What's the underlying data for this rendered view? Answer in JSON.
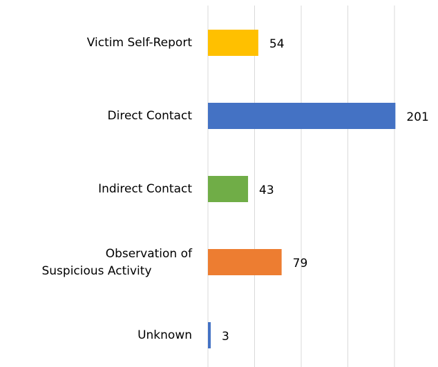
{
  "chart_data": {
    "type": "bar",
    "orientation": "horizontal",
    "categories": [
      "Victim Self-Report",
      "Direct Contact",
      "Indirect Contact",
      "Observation of Suspicious Activity",
      "Unknown"
    ],
    "values": [
      54,
      201,
      43,
      79,
      3
    ],
    "colors": [
      "#ffc000",
      "#4472c4",
      "#70ad47",
      "#ed7d31",
      "#4472c4"
    ],
    "xlim": [
      0,
      200
    ],
    "xticks": [
      0,
      50,
      100,
      150,
      200
    ],
    "grid": true
  }
}
